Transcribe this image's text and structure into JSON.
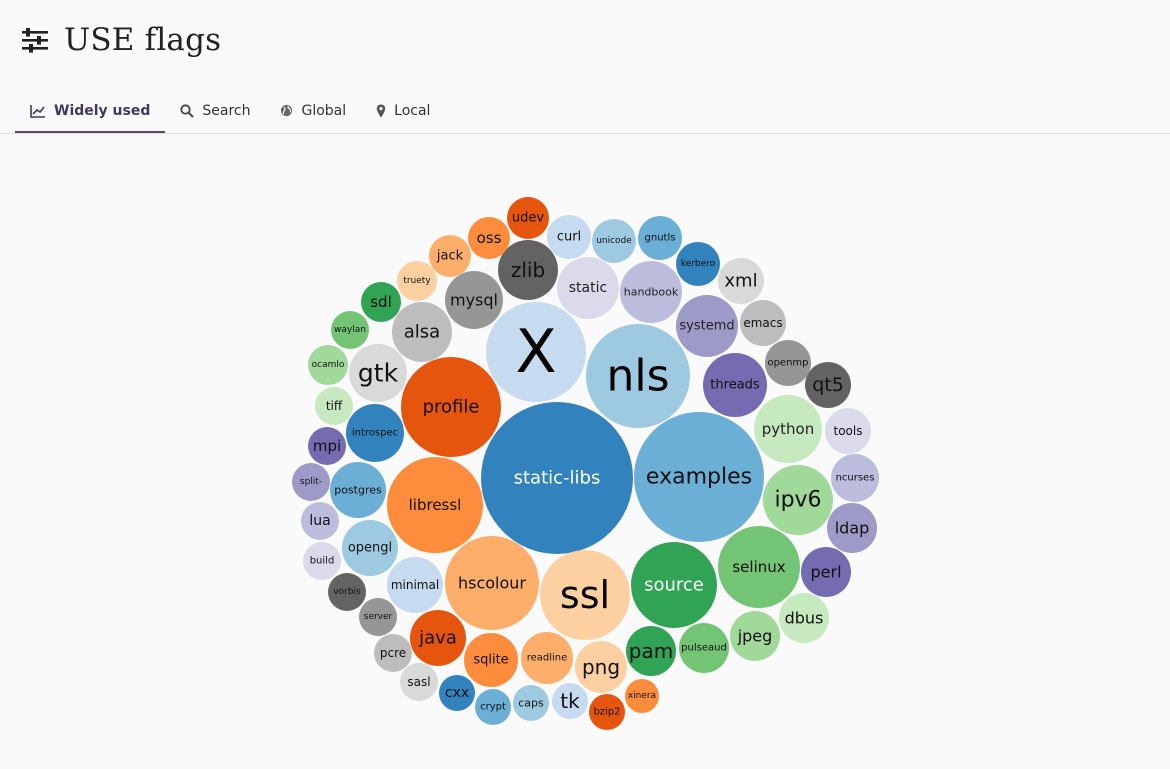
{
  "page": {
    "title": "USE flags",
    "title_icon": "sliders-icon"
  },
  "tabs": [
    {
      "label": "Widely used",
      "icon": "chart-line-icon",
      "active": true
    },
    {
      "label": "Search",
      "icon": "search-icon",
      "active": false
    },
    {
      "label": "Global",
      "icon": "globe-icon",
      "active": false
    },
    {
      "label": "Local",
      "icon": "map-marker-icon",
      "active": false
    }
  ],
  "bubbles": [
    {
      "label": "X",
      "color": "#c6dbef"
    },
    {
      "label": "nls",
      "color": "#9ecae1"
    },
    {
      "label": "static-libs",
      "color": "#3182bd"
    },
    {
      "label": "examples",
      "color": "#6baed6"
    },
    {
      "label": "ssl",
      "color": "#fdd0a2"
    },
    {
      "label": "source",
      "color": "#31a354"
    },
    {
      "label": "selinux",
      "color": "#74c476"
    },
    {
      "label": "hscolour",
      "color": "#fdae6b"
    },
    {
      "label": "libressl",
      "color": "#fd8d3c"
    },
    {
      "label": "profile",
      "color": "#e6550d"
    },
    {
      "label": "static",
      "color": "#dadaeb"
    },
    {
      "label": "handbook",
      "color": "#bcbddc"
    },
    {
      "label": "systemd",
      "color": "#9e9ac8"
    },
    {
      "label": "threads",
      "color": "#756bb1"
    },
    {
      "label": "python",
      "color": "#c7e9c0"
    },
    {
      "label": "ipv6",
      "color": "#a1d99b"
    },
    {
      "label": "zlib",
      "color": "#636363"
    },
    {
      "label": "mysql",
      "color": "#969696"
    },
    {
      "label": "alsa",
      "color": "#bdbdbd"
    },
    {
      "label": "gtk",
      "color": "#d9d9d9"
    },
    {
      "label": "introspec",
      "color": "#3182bd"
    },
    {
      "label": "postgres",
      "color": "#6baed6"
    },
    {
      "label": "opengl",
      "color": "#9ecae1"
    },
    {
      "label": "minimal",
      "color": "#c6dbef"
    },
    {
      "label": "java",
      "color": "#e6550d"
    },
    {
      "label": "sqlite",
      "color": "#fd8d3c"
    },
    {
      "label": "readline",
      "color": "#fdae6b"
    },
    {
      "label": "png",
      "color": "#fdd0a2"
    },
    {
      "label": "pam",
      "color": "#31a354"
    },
    {
      "label": "pulseaud",
      "color": "#74c476"
    },
    {
      "label": "jpeg",
      "color": "#a1d99b"
    },
    {
      "label": "dbus",
      "color": "#c7e9c0"
    },
    {
      "label": "perl",
      "color": "#756bb1"
    },
    {
      "label": "ldap",
      "color": "#9e9ac8"
    },
    {
      "label": "ncurses",
      "color": "#bcbddc"
    },
    {
      "label": "tools",
      "color": "#dadaeb"
    },
    {
      "label": "qt5",
      "color": "#636363"
    },
    {
      "label": "openmp",
      "color": "#969696"
    },
    {
      "label": "emacs",
      "color": "#bdbdbd"
    },
    {
      "label": "xml",
      "color": "#d9d9d9"
    },
    {
      "label": "kerbero",
      "color": "#3182bd"
    },
    {
      "label": "gnutls",
      "color": "#6baed6"
    },
    {
      "label": "unicode",
      "color": "#9ecae1"
    },
    {
      "label": "curl",
      "color": "#c6dbef"
    },
    {
      "label": "udev",
      "color": "#e6550d"
    },
    {
      "label": "oss",
      "color": "#fd8d3c"
    },
    {
      "label": "jack",
      "color": "#fdae6b"
    },
    {
      "label": "truety",
      "color": "#fdd0a2"
    },
    {
      "label": "sdl",
      "color": "#31a354"
    },
    {
      "label": "waylan",
      "color": "#74c476"
    },
    {
      "label": "ocamlo",
      "color": "#a1d99b"
    },
    {
      "label": "tiff",
      "color": "#c7e9c0"
    },
    {
      "label": "mpi",
      "color": "#756bb1"
    },
    {
      "label": "split-",
      "color": "#9e9ac8"
    },
    {
      "label": "lua",
      "color": "#bcbddc"
    },
    {
      "label": "build",
      "color": "#dadaeb"
    },
    {
      "label": "vorbis",
      "color": "#636363"
    },
    {
      "label": "server",
      "color": "#969696"
    },
    {
      "label": "pcre",
      "color": "#bdbdbd"
    },
    {
      "label": "sasl",
      "color": "#d9d9d9"
    },
    {
      "label": "cxx",
      "color": "#3182bd"
    },
    {
      "label": "crypt",
      "color": "#6baed6"
    },
    {
      "label": "caps",
      "color": "#9ecae1"
    },
    {
      "label": "tk",
      "color": "#c6dbef"
    },
    {
      "label": "bzip2",
      "color": "#e6550d"
    },
    {
      "label": "xinera",
      "color": "#fd8d3c"
    }
  ]
}
